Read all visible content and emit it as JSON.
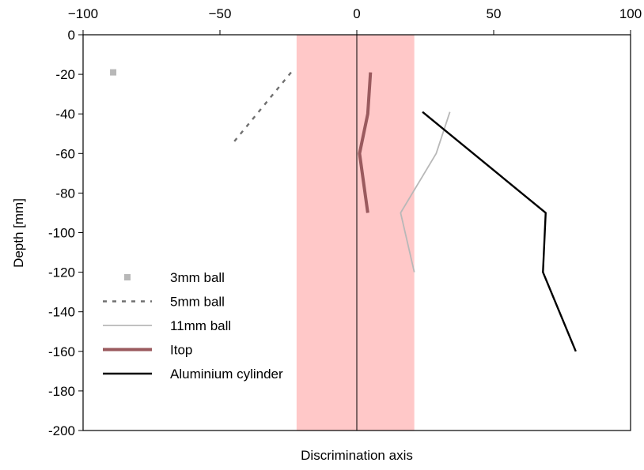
{
  "chart_data": {
    "type": "line",
    "title": "",
    "xlabel": "Discrimination axis",
    "ylabel": "Depth [mm]",
    "xlim": [
      -100,
      100
    ],
    "ylim": [
      -200,
      0
    ],
    "x_ticks": [
      -100,
      -50,
      0,
      50,
      100
    ],
    "y_ticks": [
      0,
      -20,
      -40,
      -60,
      -80,
      -100,
      -120,
      -140,
      -160,
      -180,
      -200
    ],
    "x_tick_labels": [
      "−100",
      "−50",
      "0",
      "50",
      "100"
    ],
    "y_tick_labels": [
      "0",
      "-20",
      "-40",
      "-60",
      "-80",
      "-100",
      "-120",
      "-140",
      "-160",
      "-180",
      "-200"
    ],
    "x_axis_position": "top",
    "grid": false,
    "legend_position": "bottom-left",
    "shaded_band": {
      "x_start": -22,
      "x_end": 21,
      "color": "#ffc8c8"
    },
    "series": [
      {
        "name": "3mm ball",
        "style": "marker",
        "color": "#b8b8b8",
        "points": [
          [
            -89,
            -19
          ]
        ]
      },
      {
        "name": "5mm ball",
        "style": "dashed",
        "color": "#707070",
        "points": [
          [
            -24,
            -19
          ],
          [
            -46,
            -56
          ]
        ]
      },
      {
        "name": "11mm ball",
        "style": "solid-thin",
        "color": "#b8b8b8",
        "points": [
          [
            34,
            -39
          ],
          [
            29,
            -60
          ],
          [
            16,
            -90
          ],
          [
            21,
            -120
          ]
        ]
      },
      {
        "name": "Itop",
        "style": "solid-thick",
        "color": "#9a5a5e",
        "points": [
          [
            5,
            -19
          ],
          [
            4,
            -40
          ],
          [
            1,
            -60
          ],
          [
            4,
            -90
          ]
        ]
      },
      {
        "name": "Aluminium cylinder",
        "style": "solid",
        "color": "#000000",
        "points": [
          [
            24,
            -39
          ],
          [
            69,
            -90
          ],
          [
            68,
            -120
          ],
          [
            80,
            -160
          ]
        ]
      }
    ]
  }
}
